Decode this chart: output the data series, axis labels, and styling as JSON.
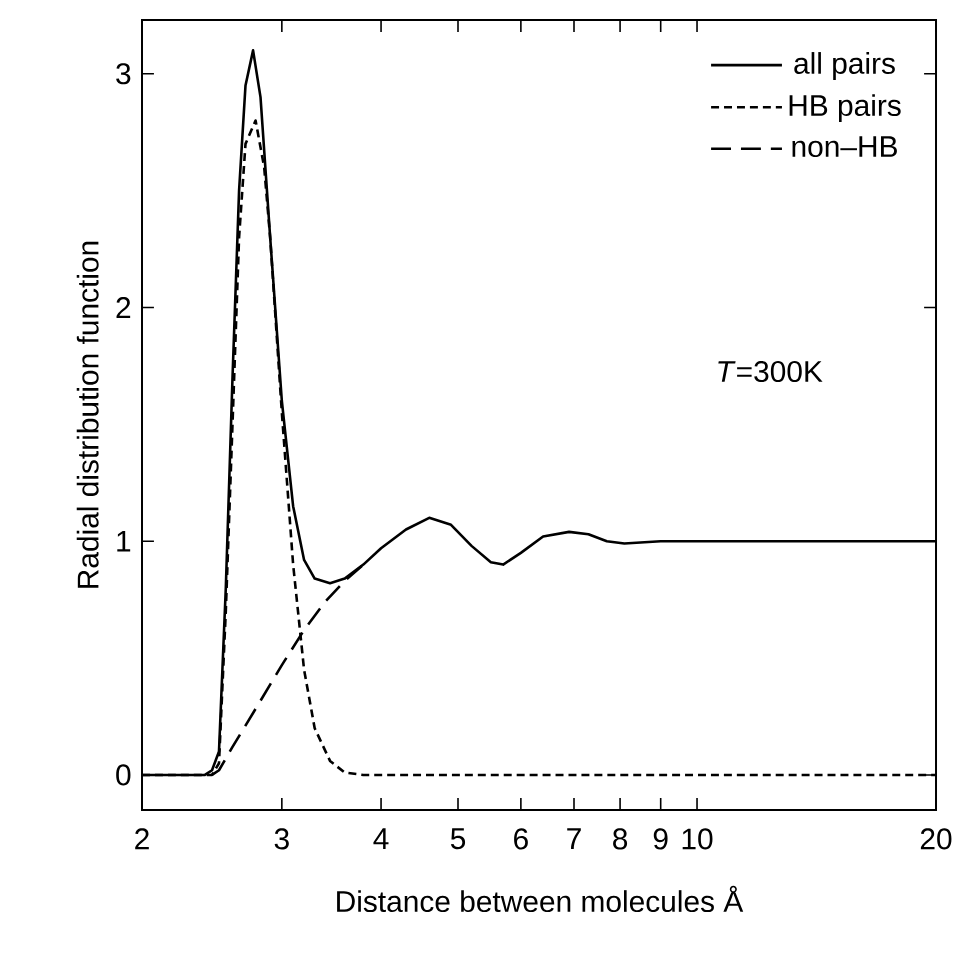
{
  "chart_data": {
    "type": "line",
    "xlabel": "Distance between molecules  Å",
    "ylabel": "Radial distribution function",
    "log": "x",
    "xlim": [
      2,
      20
    ],
    "ylim": [
      -0.15,
      3.23
    ],
    "xticks": [
      2,
      3,
      4,
      5,
      6,
      7,
      8,
      9,
      10,
      20
    ],
    "yticks": [
      0,
      1,
      2,
      3
    ],
    "legend": "top right",
    "grid": false,
    "marker": "none",
    "annotations": [
      "*T*=300K"
    ],
    "series": [
      {
        "name": "all pairs",
        "color": "#000000",
        "line_style": "solid",
        "x": [
          2,
          2.4,
          2.45,
          2.5,
          2.55,
          2.6,
          2.65,
          2.7,
          2.76,
          2.82,
          2.9,
          3.0,
          3.1,
          3.2,
          3.3,
          3.45,
          3.6,
          3.8,
          4.0,
          4.3,
          4.6,
          4.9,
          5.2,
          5.5,
          5.7,
          6.0,
          6.4,
          6.9,
          7.3,
          7.7,
          8.1,
          9,
          10,
          20
        ],
        "values": [
          0,
          0,
          0.02,
          0.1,
          0.8,
          1.7,
          2.5,
          2.95,
          3.1,
          2.9,
          2.3,
          1.6,
          1.15,
          0.92,
          0.84,
          0.82,
          0.84,
          0.9,
          0.97,
          1.05,
          1.1,
          1.07,
          0.98,
          0.91,
          0.9,
          0.95,
          1.02,
          1.04,
          1.03,
          1.0,
          0.99,
          1.0,
          1.0,
          1.0
        ]
      },
      {
        "name": "HB pairs",
        "color": "#000000",
        "line_style": "dashed",
        "x": [
          2,
          2.45,
          2.5,
          2.55,
          2.6,
          2.65,
          2.7,
          2.78,
          2.85,
          2.9,
          3.0,
          3.1,
          3.2,
          3.3,
          3.45,
          3.6,
          3.8,
          4,
          20
        ],
        "values": [
          0,
          0,
          0.05,
          0.7,
          1.5,
          2.3,
          2.7,
          2.8,
          2.6,
          2.3,
          1.55,
          0.9,
          0.45,
          0.2,
          0.06,
          0.01,
          0,
          0,
          0
        ]
      },
      {
        "name": "non–HB",
        "color": "#000000",
        "line_style": "dashed",
        "x": [
          2.45,
          2.5,
          2.6,
          2.8,
          3.0,
          3.2,
          3.4,
          3.6,
          3.8
        ],
        "values": [
          0,
          0.02,
          0.12,
          0.3,
          0.47,
          0.62,
          0.74,
          0.83,
          0.9
        ]
      }
    ]
  }
}
